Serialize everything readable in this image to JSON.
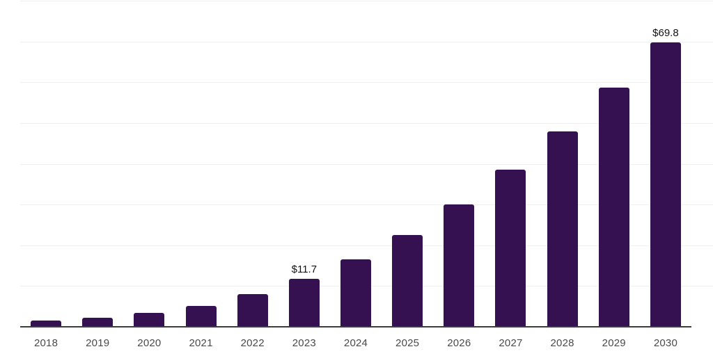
{
  "chart_data": {
    "type": "bar",
    "title": "",
    "xlabel": "",
    "ylabel": "",
    "categories": [
      "2018",
      "2019",
      "2020",
      "2021",
      "2022",
      "2023",
      "2024",
      "2025",
      "2026",
      "2027",
      "2028",
      "2029",
      "2030"
    ],
    "values": [
      1.6,
      2.3,
      3.4,
      5.1,
      8.0,
      11.7,
      16.5,
      22.6,
      30.0,
      38.5,
      48.0,
      58.6,
      69.8
    ],
    "data_labels": {
      "2023": "$11.7",
      "2030": "$69.8"
    },
    "ylim": [
      0,
      80
    ],
    "grid": "horizontal",
    "grid_step": 10,
    "legend_position": "none",
    "colors": {
      "bar": "#361152",
      "gridline": "#f0f0f0",
      "axis_line": "#3c3c3c",
      "tick_label": "#4a4a4a",
      "data_label": "#111111",
      "background": "#ffffff"
    }
  }
}
